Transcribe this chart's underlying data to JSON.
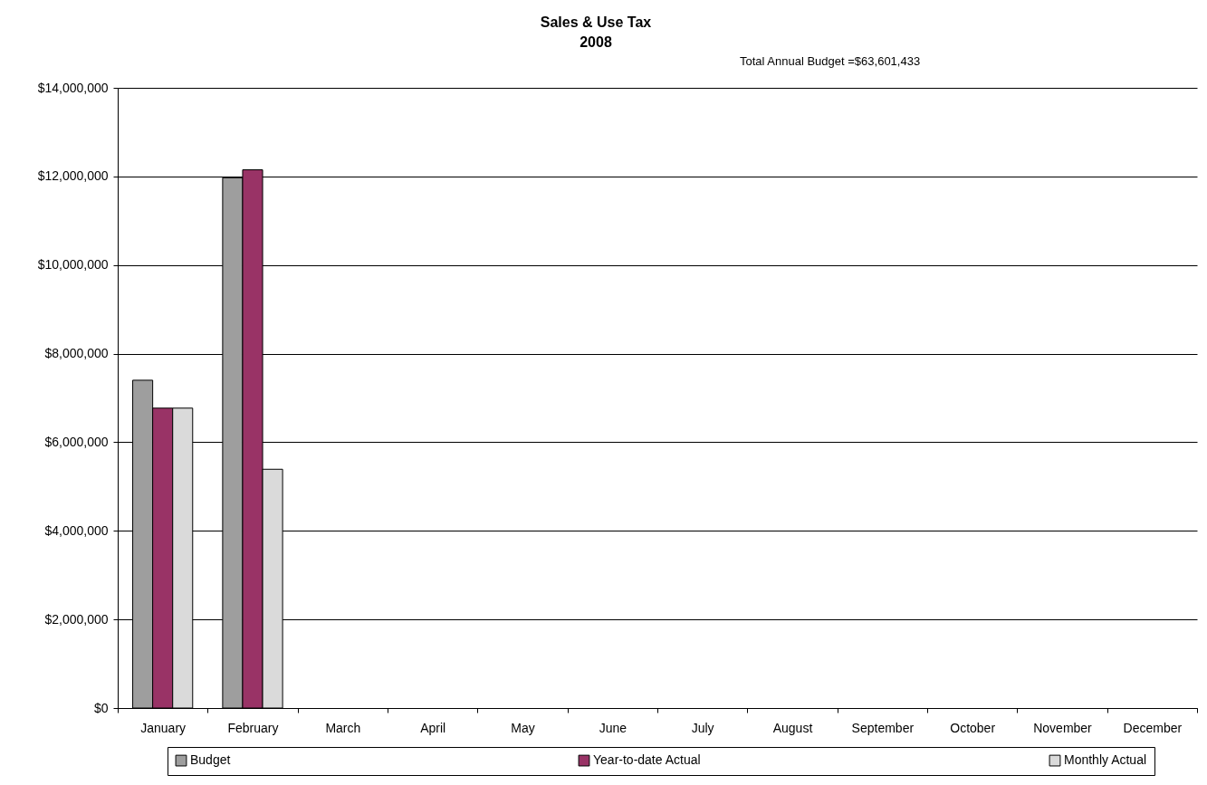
{
  "chart_data": {
    "type": "bar",
    "title": "Sales & Use Tax",
    "subtitle": "2008",
    "annotations": [
      "Total Annual Budget =$63,601,433"
    ],
    "categories": [
      "January",
      "February",
      "March",
      "April",
      "May",
      "June",
      "July",
      "August",
      "September",
      "October",
      "November",
      "December"
    ],
    "series": [
      {
        "name": "Budget",
        "color": "#9e9e9e",
        "values": [
          7400000,
          11970000,
          null,
          null,
          null,
          null,
          null,
          null,
          null,
          null,
          null,
          null
        ]
      },
      {
        "name": "Year-to-date Actual",
        "color": "#993366",
        "values": [
          6770000,
          12150000,
          null,
          null,
          null,
          null,
          null,
          null,
          null,
          null,
          null,
          null
        ]
      },
      {
        "name": "Monthly Actual",
        "color": "#dadada",
        "values": [
          6770000,
          5390000,
          null,
          null,
          null,
          null,
          null,
          null,
          null,
          null,
          null,
          null
        ]
      }
    ],
    "ylim": [
      0,
      14000000
    ],
    "yticks": [
      {
        "value": 0,
        "label": "$0"
      },
      {
        "value": 2000000,
        "label": "$2,000,000"
      },
      {
        "value": 4000000,
        "label": "$4,000,000"
      },
      {
        "value": 6000000,
        "label": "$6,000,000"
      },
      {
        "value": 8000000,
        "label": "$8,000,000"
      },
      {
        "value": 10000000,
        "label": "$10,000,000"
      },
      {
        "value": 12000000,
        "label": "$12,000,000"
      },
      {
        "value": 14000000,
        "label": "$14,000,000"
      }
    ],
    "grid": "y",
    "legend": "bottom"
  }
}
